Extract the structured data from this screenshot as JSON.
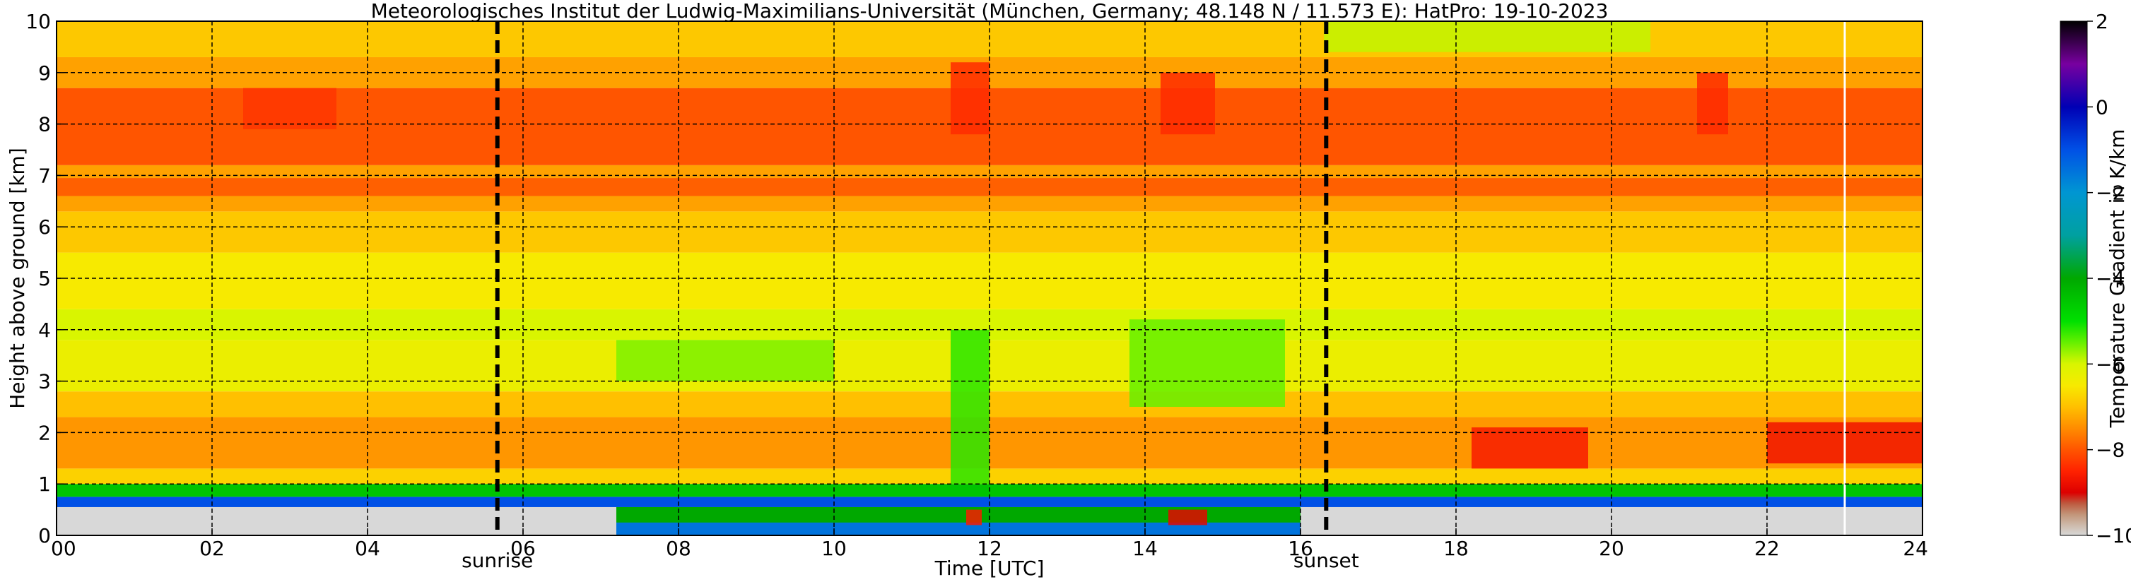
{
  "chart_data": {
    "type": "heatmap",
    "title": "Meteorologisches Institut der Ludwig-Maximilians-Universität (München, Germany; 48.148 N / 11.573 E):    HatPro: 19-10-2023",
    "xlabel": "Time [UTC]",
    "ylabel": "Height above ground [km]",
    "colorbar_label": "Temperature Gradient in K/km",
    "xlim": [
      0,
      24
    ],
    "ylim": [
      0,
      10
    ],
    "clim": [
      -10,
      2
    ],
    "x_ticks": [
      0,
      2,
      4,
      6,
      8,
      10,
      12,
      14,
      16,
      18,
      20,
      22,
      24
    ],
    "x_tick_labels": [
      "00",
      "02",
      "04",
      "06",
      "08",
      "10",
      "12",
      "14",
      "16",
      "18",
      "20",
      "22",
      "24"
    ],
    "y_ticks": [
      0,
      1,
      2,
      3,
      4,
      5,
      6,
      7,
      8,
      9,
      10
    ],
    "y_tick_labels": [
      "0",
      "1",
      "2",
      "3",
      "4",
      "5",
      "6",
      "7",
      "8",
      "9",
      "10"
    ],
    "colorbar_ticks": [
      2,
      0,
      -2,
      -4,
      -6,
      -8,
      -10
    ],
    "colorbar_tick_labels": [
      "2",
      "0",
      "−2",
      "−4",
      "−6",
      "−8",
      "−10"
    ],
    "grid": true,
    "markers": [
      {
        "name": "sunrise",
        "label": "sunrise",
        "x": 5.67
      },
      {
        "name": "sunset",
        "label": "sunset",
        "x": 16.33
      }
    ],
    "data_gap_x": 23.0,
    "layers": [
      {
        "z0": 0.0,
        "z1": 0.55,
        "value": -10.0
      },
      {
        "z0": 0.55,
        "z1": 0.75,
        "value": -1.0
      },
      {
        "z0": 0.75,
        "z1": 1.0,
        "value": -4.5
      },
      {
        "z0": 1.0,
        "z1": 1.3,
        "value": -6.8
      },
      {
        "z0": 1.3,
        "z1": 2.3,
        "value": -7.4
      },
      {
        "z0": 2.3,
        "z1": 2.8,
        "value": -7.0
      },
      {
        "z0": 2.8,
        "z1": 3.8,
        "value": -6.3
      },
      {
        "z0": 3.8,
        "z1": 4.4,
        "value": -6.0
      },
      {
        "z0": 4.4,
        "z1": 5.5,
        "value": -6.5
      },
      {
        "z0": 5.5,
        "z1": 6.3,
        "value": -6.9
      },
      {
        "z0": 6.3,
        "z1": 6.6,
        "value": -7.3
      },
      {
        "z0": 6.6,
        "z1": 6.95,
        "value": -7.9
      },
      {
        "z0": 6.95,
        "z1": 7.2,
        "value": -7.3
      },
      {
        "z0": 7.2,
        "z1": 8.7,
        "value": -8.0
      },
      {
        "z0": 8.7,
        "z1": 9.3,
        "value": -7.3
      },
      {
        "z0": 9.3,
        "z1": 10.0,
        "value": -6.9
      }
    ],
    "features": [
      {
        "t0": 7.2,
        "t1": 10.0,
        "z0": 3.0,
        "z1": 3.8,
        "value": -5.6
      },
      {
        "t0": 11.5,
        "t1": 12.0,
        "z0": 1.0,
        "z1": 4.0,
        "value": -5.2
      },
      {
        "t0": 13.8,
        "t1": 15.8,
        "z0": 2.5,
        "z1": 4.2,
        "value": -5.5
      },
      {
        "t0": 18.2,
        "t1": 19.7,
        "z0": 1.3,
        "z1": 2.1,
        "value": -8.6
      },
      {
        "t0": 22.0,
        "t1": 24.0,
        "z0": 1.4,
        "z1": 2.2,
        "value": -8.7
      },
      {
        "t0": 11.5,
        "t1": 12.0,
        "z0": 7.8,
        "z1": 9.2,
        "value": -8.4
      },
      {
        "t0": 14.2,
        "t1": 14.9,
        "z0": 7.8,
        "z1": 9.0,
        "value": -8.4
      },
      {
        "t0": 2.4,
        "t1": 3.6,
        "z0": 7.9,
        "z1": 8.7,
        "value": -8.3
      },
      {
        "t0": 21.1,
        "t1": 21.5,
        "z0": 7.8,
        "z1": 9.0,
        "value": -8.4
      },
      {
        "t0": 16.3,
        "t1": 20.5,
        "z0": 9.4,
        "z1": 10.0,
        "value": -5.9
      },
      {
        "t0": 14.3,
        "t1": 14.8,
        "z0": 0.2,
        "z1": 0.5,
        "value": -8.9
      },
      {
        "t0": 11.7,
        "t1": 11.9,
        "z0": 0.2,
        "z1": 0.5,
        "value": -8.6
      }
    ],
    "surface_layer_thin_periods": [
      {
        "t0": 7.2,
        "t1": 16.0
      }
    ]
  }
}
